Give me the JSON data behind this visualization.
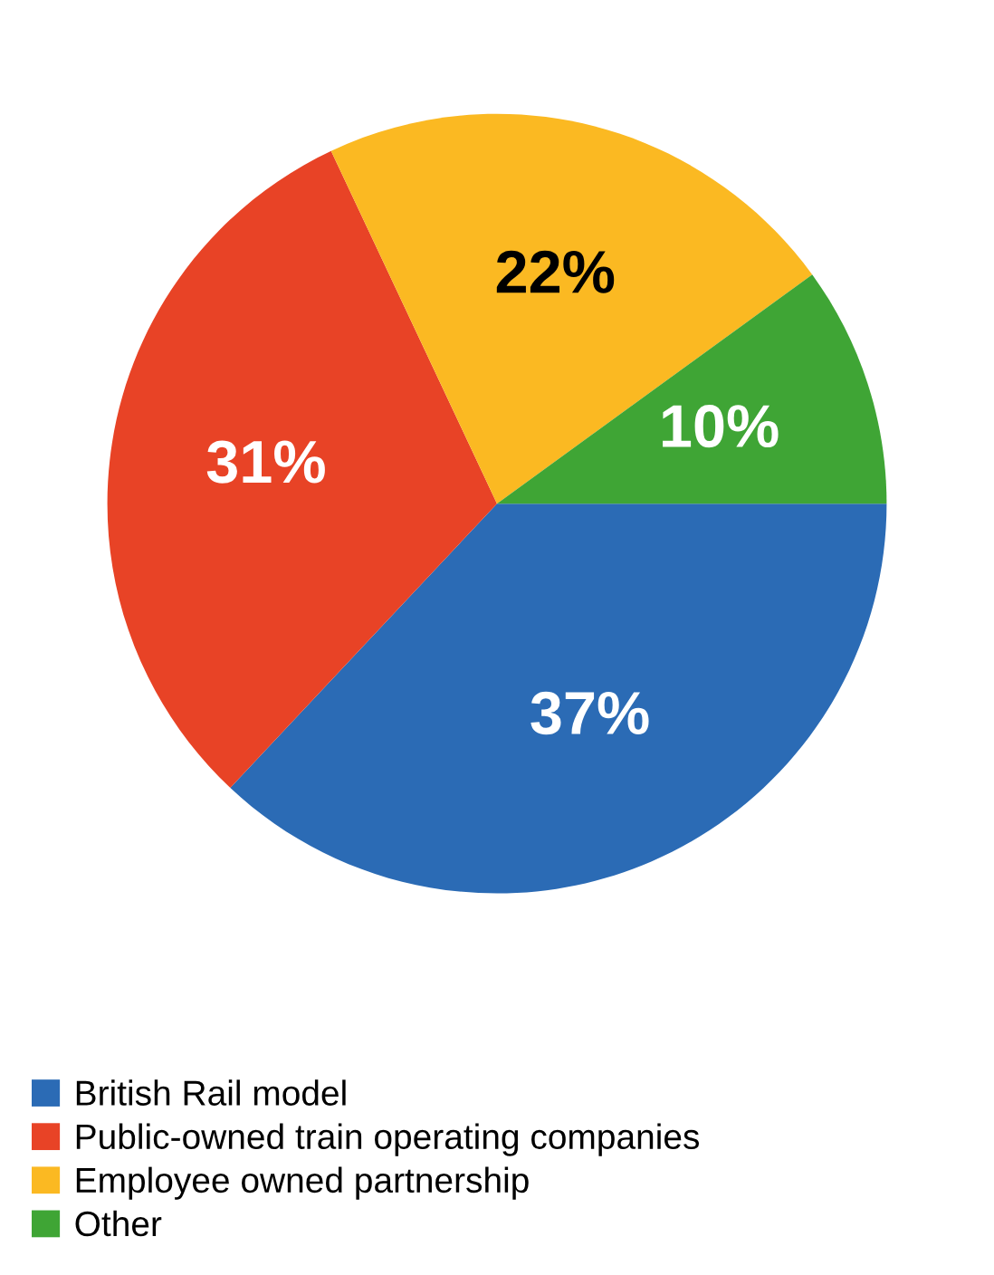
{
  "chart_data": {
    "type": "pie",
    "categories": [
      "British Rail model",
      "Public-owned train operating companies",
      "Employee owned partnership",
      "Other"
    ],
    "values": [
      37,
      31,
      22,
      10
    ],
    "colors": [
      "#2b6bb5",
      "#e84326",
      "#fbb922",
      "#3fa535"
    ],
    "value_labels": [
      "37%",
      "31%",
      "22%",
      "10%"
    ],
    "legend": "bottom left"
  }
}
